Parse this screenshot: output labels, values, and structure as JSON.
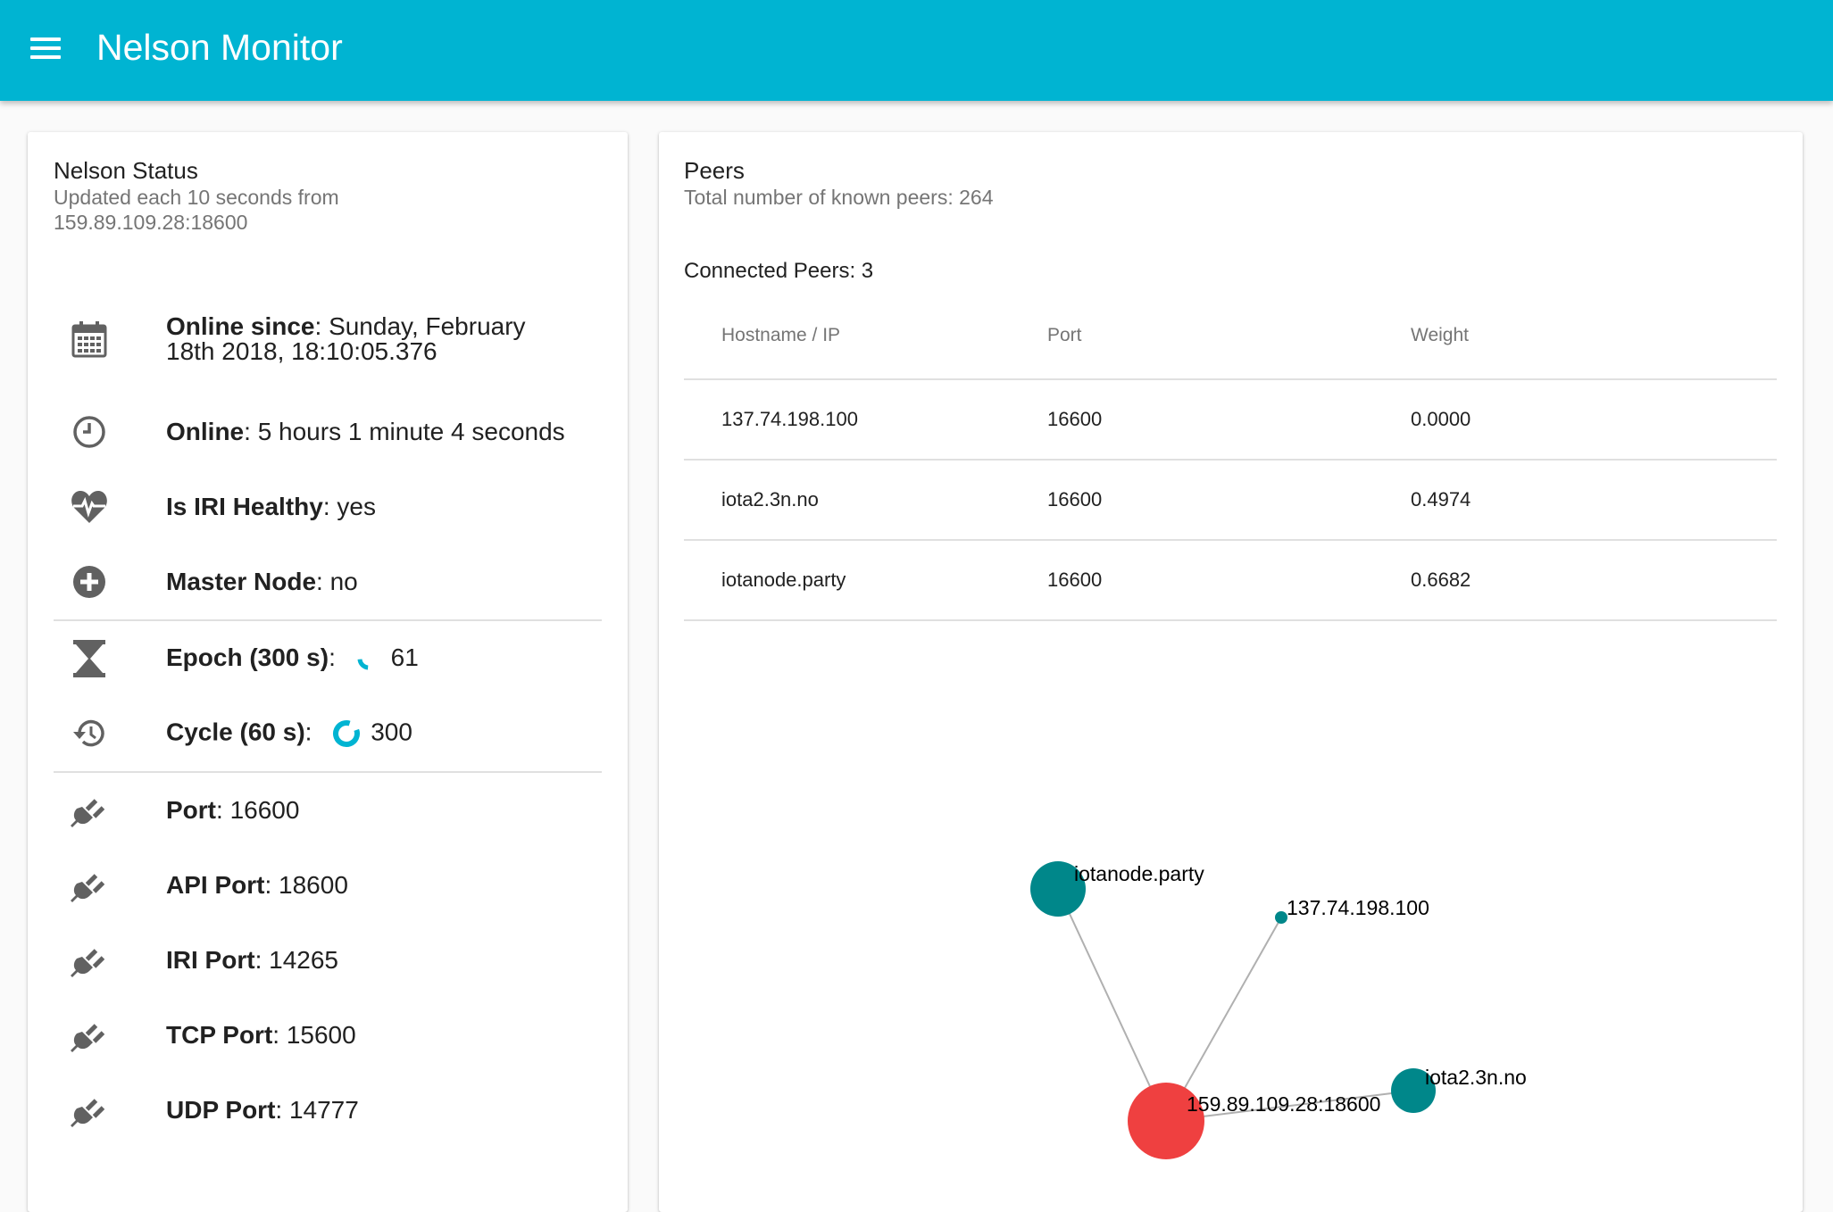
{
  "app": {
    "title": "Nelson Monitor"
  },
  "status_card": {
    "title": "Nelson Status",
    "subtitle_line1": "Updated each 10 seconds from",
    "subtitle_line2": "159.89.109.28:18600",
    "items": [
      {
        "label": "Online since",
        "value_line1": "Sunday, February",
        "value_line2": "18th 2018, 18:10:05.376",
        "icon": "calendar-icon"
      },
      {
        "label": "Online",
        "value": "5 hours 1 minute 4 seconds",
        "icon": "clock-icon"
      },
      {
        "label": "Is IRI Healthy",
        "value": "yes",
        "icon": "heart-pulse-icon"
      },
      {
        "label": "Master Node",
        "value": "no",
        "icon": "plus-circle-icon"
      },
      {
        "label": "Epoch (300 s)",
        "value": "61",
        "progress": 0.2,
        "icon": "hourglass-icon"
      },
      {
        "label": "Cycle (60 s)",
        "value": "300",
        "progress": 0.85,
        "icon": "history-icon"
      },
      {
        "label": "Port",
        "value": "16600",
        "icon": "plug-icon"
      },
      {
        "label": "API Port",
        "value": "18600",
        "icon": "plug-icon"
      },
      {
        "label": "IRI Port",
        "value": "14265",
        "icon": "plug-icon"
      },
      {
        "label": "TCP Port",
        "value": "15600",
        "icon": "plug-icon"
      },
      {
        "label": "UDP Port",
        "value": "14777",
        "icon": "plug-icon"
      }
    ]
  },
  "peers_card": {
    "title": "Peers",
    "subtitle": "Total number of known peers: 264",
    "connected_label": "Connected Peers: 3",
    "columns": [
      "Hostname / IP",
      "Port",
      "Weight"
    ],
    "rows": [
      {
        "host": "137.74.198.100",
        "port": "16600",
        "weight": "0.0000"
      },
      {
        "host": "iota2.3n.no",
        "port": "16600",
        "weight": "0.4974"
      },
      {
        "host": "iotanode.party",
        "port": "16600",
        "weight": "0.6682"
      }
    ],
    "graph": {
      "center": {
        "label": "159.89.109.28:18600",
        "color": "#ef4040"
      },
      "peers": [
        {
          "label": "iotanode.party",
          "weight": 0.6682,
          "color": "#00878a"
        },
        {
          "label": "137.74.198.100",
          "weight": 0.0,
          "color": "#00878a"
        },
        {
          "label": "iota2.3n.no",
          "weight": 0.4974,
          "color": "#00878a"
        }
      ]
    }
  },
  "colors": {
    "primary": "#00b4d2",
    "icon": "#616161",
    "progress": "#00b4d2"
  }
}
